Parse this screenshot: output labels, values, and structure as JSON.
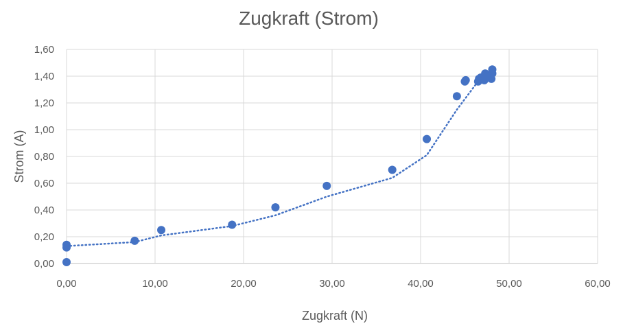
{
  "chart_data": {
    "type": "scatter",
    "title": "Zugkraft (Strom)",
    "xlabel": "Zugkraft (N)",
    "ylabel": "Strom (A)",
    "xlim": [
      0,
      60
    ],
    "ylim": [
      0,
      1.6
    ],
    "x_ticks": [
      "0,00",
      "10,00",
      "20,00",
      "30,00",
      "40,00",
      "50,00",
      "60,00"
    ],
    "y_ticks": [
      "0,00",
      "0,20",
      "0,40",
      "0,60",
      "0,80",
      "1,00",
      "1,20",
      "1,40",
      "1,60"
    ],
    "grid": true,
    "legend": false,
    "series": [
      {
        "marker_color": "#4472c4",
        "points": [
          {
            "x": 0.0,
            "y": 0.01
          },
          {
            "x": 0.0,
            "y": 0.12
          },
          {
            "x": 0.0,
            "y": 0.14
          },
          {
            "x": 7.7,
            "y": 0.17
          },
          {
            "x": 10.7,
            "y": 0.25
          },
          {
            "x": 18.7,
            "y": 0.29
          },
          {
            "x": 23.6,
            "y": 0.42
          },
          {
            "x": 29.4,
            "y": 0.58
          },
          {
            "x": 36.8,
            "y": 0.7
          },
          {
            "x": 40.7,
            "y": 0.93
          },
          {
            "x": 44.1,
            "y": 1.25
          },
          {
            "x": 45.0,
            "y": 1.36
          },
          {
            "x": 45.1,
            "y": 1.37
          },
          {
            "x": 46.5,
            "y": 1.36
          },
          {
            "x": 46.6,
            "y": 1.38
          },
          {
            "x": 46.8,
            "y": 1.39
          },
          {
            "x": 47.2,
            "y": 1.37
          },
          {
            "x": 47.3,
            "y": 1.42
          },
          {
            "x": 47.8,
            "y": 1.4
          },
          {
            "x": 48.0,
            "y": 1.38
          },
          {
            "x": 48.1,
            "y": 1.42
          },
          {
            "x": 48.1,
            "y": 1.45
          }
        ]
      }
    ],
    "trendline": {
      "style": "dotted",
      "color": "#4472c4",
      "points": [
        {
          "x": 0.0,
          "y": 0.13
        },
        {
          "x": 7.7,
          "y": 0.16
        },
        {
          "x": 10.7,
          "y": 0.21
        },
        {
          "x": 18.7,
          "y": 0.28
        },
        {
          "x": 23.6,
          "y": 0.36
        },
        {
          "x": 29.4,
          "y": 0.5
        },
        {
          "x": 36.8,
          "y": 0.64
        },
        {
          "x": 40.7,
          "y": 0.81
        },
        {
          "x": 44.1,
          "y": 1.15
        },
        {
          "x": 46.6,
          "y": 1.37
        },
        {
          "x": 48.1,
          "y": 1.41
        }
      ]
    }
  }
}
